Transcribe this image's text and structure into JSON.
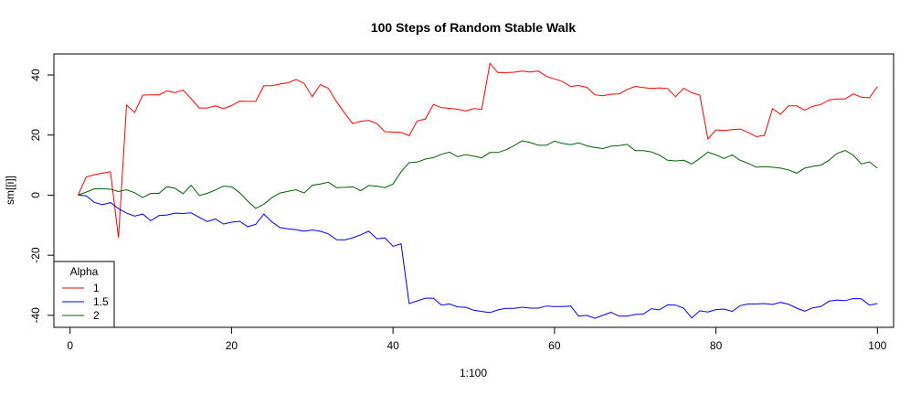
{
  "chart_data": {
    "type": "line",
    "title": "100 Steps of Random Stable Walk",
    "xlabel": "1:100",
    "ylabel": "sm[[i]]",
    "xlim": [
      -2,
      102
    ],
    "ylim": [
      -44,
      47
    ],
    "xticks": [
      0,
      20,
      40,
      60,
      80,
      100
    ],
    "yticks": [
      -40,
      -20,
      0,
      20,
      40
    ],
    "grid": false,
    "legend": {
      "title": "Alpha",
      "position": "bottom-left",
      "entries": [
        "1",
        "1.5",
        "2"
      ]
    },
    "x": [
      1,
      2,
      3,
      4,
      5,
      6,
      7,
      8,
      9,
      10,
      11,
      12,
      13,
      14,
      15,
      16,
      17,
      18,
      19,
      20,
      21,
      22,
      23,
      24,
      25,
      26,
      27,
      28,
      29,
      30,
      31,
      32,
      33,
      34,
      35,
      36,
      37,
      38,
      39,
      40,
      41,
      42,
      43,
      44,
      45,
      46,
      47,
      48,
      49,
      50,
      51,
      52,
      53,
      54,
      55,
      56,
      57,
      58,
      59,
      60,
      61,
      62,
      63,
      64,
      65,
      66,
      67,
      68,
      69,
      70,
      71,
      72,
      73,
      74,
      75,
      76,
      77,
      78,
      79,
      80,
      81,
      82,
      83,
      84,
      85,
      86,
      87,
      88,
      89,
      90,
      91,
      92,
      93,
      94,
      95,
      96,
      97,
      98,
      99,
      100
    ],
    "series": [
      {
        "name": "1",
        "color": "#ff0000",
        "values": [
          0,
          6,
          6.8,
          7.3,
          7.8,
          -14.2,
          30,
          27.5,
          33.3,
          33.4,
          33.4,
          34.7,
          34.1,
          35,
          32.1,
          29,
          29,
          29.7,
          28.8,
          29.8,
          31.3,
          31.2,
          31.2,
          36.4,
          36.4,
          37,
          37.4,
          38.5,
          37.2,
          32.8,
          36.8,
          35.6,
          31.1,
          27.4,
          23.8,
          24.6,
          24.9,
          23.8,
          21.1,
          21,
          20.9,
          19.8,
          24.7,
          25.3,
          30.2,
          29.1,
          28.9,
          28.6,
          28,
          28.8,
          28.6,
          43.9,
          40.8,
          40.8,
          40.9,
          41.3,
          41,
          41.3,
          39.5,
          38.7,
          37.8,
          36.2,
          36.5,
          35.9,
          33.4,
          33.1,
          33.6,
          33.7,
          35.2,
          36.2,
          35.8,
          35.5,
          35.7,
          35.5,
          32.8,
          35.6,
          34.1,
          33.3,
          18.7,
          21.7,
          21.5,
          21.8,
          22,
          20.9,
          19.5,
          19.9,
          28.8,
          26.9,
          29.7,
          29.7,
          28.3,
          29.6,
          30.2,
          31.7,
          32,
          32,
          33.7,
          32.6,
          32.4,
          36.1
        ]
      },
      {
        "name": "1.5",
        "color": "#0000ff",
        "values": [
          0,
          -0.2,
          -2.4,
          -3.2,
          -2.5,
          -4.5,
          -6,
          -7,
          -6.3,
          -8.5,
          -6.8,
          -6.6,
          -6,
          -6.1,
          -5.9,
          -7.4,
          -8.8,
          -7.9,
          -9.6,
          -9,
          -8.7,
          -10.5,
          -9.7,
          -6.3,
          -8.9,
          -10.8,
          -11.2,
          -11.5,
          -12,
          -11.6,
          -12,
          -12.9,
          -14.8,
          -14.9,
          -14.2,
          -13.2,
          -12,
          -14.5,
          -14.2,
          -17,
          -16.2,
          -36.1,
          -35.2,
          -34.3,
          -34.3,
          -36.6,
          -36.2,
          -37.2,
          -37.3,
          -38.3,
          -38.7,
          -39.1,
          -38.2,
          -37.7,
          -37.7,
          -37.3,
          -37.6,
          -37.6,
          -36.9,
          -37.1,
          -37.1,
          -36.9,
          -40.3,
          -40,
          -41,
          -40,
          -39,
          -40.3,
          -40.3,
          -39.7,
          -39.6,
          -37.8,
          -38.2,
          -36.5,
          -36.6,
          -37.6,
          -40.9,
          -38.5,
          -38.9,
          -38.1,
          -37.9,
          -38.7,
          -36.8,
          -36.2,
          -36.2,
          -36.1,
          -36.4,
          -35.7,
          -36.3,
          -37.6,
          -38.6,
          -37.5,
          -37.1,
          -35.3,
          -34.9,
          -35.1,
          -34.4,
          -34.5,
          -36.6,
          -36.1
        ]
      },
      {
        "name": "2",
        "color": "#006400",
        "values": [
          0,
          1,
          2.1,
          2.1,
          2,
          1.2,
          1.8,
          0.8,
          -0.8,
          0.6,
          0.6,
          2.8,
          2.3,
          0.5,
          3.3,
          -0.1,
          0.6,
          1.7,
          3,
          2.8,
          0.8,
          -2,
          -4.4,
          -3,
          -0.8,
          0.7,
          1.3,
          1.8,
          0.7,
          3.3,
          3.7,
          4.3,
          2.5,
          2.6,
          2.8,
          1.5,
          3.2,
          3,
          2.5,
          3.7,
          7.8,
          10.8,
          11,
          12,
          12.5,
          13.6,
          14.3,
          12.8,
          13.5,
          13,
          12.4,
          14.2,
          14.2,
          15.1,
          16.5,
          18.1,
          17.5,
          16.6,
          16.6,
          18,
          17.2,
          16.8,
          17.4,
          16.4,
          15.9,
          15.5,
          16.3,
          16.5,
          16.9,
          14.8,
          14.8,
          14.4,
          13.3,
          11.6,
          11.4,
          11.6,
          10.4,
          12.2,
          14.3,
          13.4,
          12.2,
          13.4,
          11.6,
          10.6,
          9.3,
          9.5,
          9.3,
          9,
          8.4,
          7.3,
          9,
          9.6,
          10,
          11.6,
          13.9,
          14.9,
          13.3,
          10.4,
          11.1,
          9
        ]
      }
    ]
  }
}
